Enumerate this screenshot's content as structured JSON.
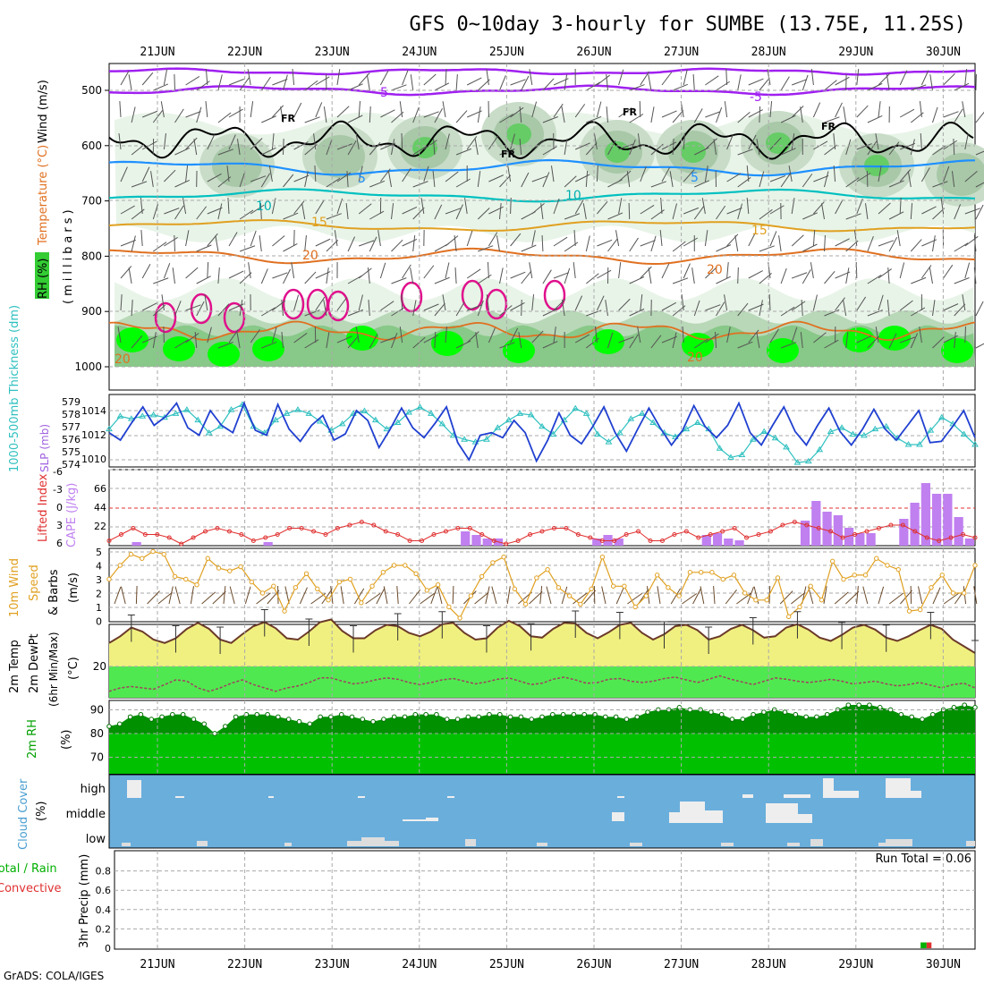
{
  "title": "GFS 0~10day 3-hourly for SUMBE (13.75E, 11.25S)",
  "credit": "GrADS: COLA/IGES",
  "days": [
    "21JUN",
    "22JUN",
    "23JUN",
    "24JUN",
    "25JUN",
    "26JUN",
    "27JUN",
    "28JUN",
    "29JUN",
    "30JUN"
  ],
  "colors": {
    "rh_light": "#e8f4e8",
    "rh_mid": "#b8d8b8",
    "rh_dark": "#88c888",
    "rh_green": "#00ff00",
    "temp_purple": "#a020f0",
    "temp_blue": "#1e90ff",
    "temp_cyan": "#00c0c0",
    "temp_orange": "#e07020",
    "temp_gold": "#e0a020",
    "temp_magenta": "#e0108c",
    "slp": "#2040d0",
    "thickness": "#30c0c0",
    "cape": "#c080f0",
    "li": "#e03030",
    "wind": "#e0a020",
    "temp2m": "#f0f080",
    "dew2m": "#50e850",
    "rh2m": "#00b000",
    "cloud": "#6aaedc",
    "grid": "#aaaaaa"
  },
  "panels": {
    "profile": {
      "ylabel_rh": "RH (%)",
      "ylabel_temp": "Temperature (°C)",
      "ylabel_wind": "Wind (m/s)",
      "ylabel_pres": "(millibars)",
      "yticks": [
        "500",
        "600",
        "700",
        "800",
        "900",
        "1000"
      ],
      "labels": {
        "fr1": "FR",
        "fr2": "FR",
        "fr3": "FR",
        "fr4": "FR",
        "t5a": "-5",
        "t5b": "-5",
        "t5c": "5",
        "t5d": "5",
        "t10a": "10",
        "t10b": "10",
        "t15a": "15",
        "t15b": "15",
        "t20a": "20",
        "t20b": "20",
        "t20c": "20",
        "t20d": "20"
      }
    },
    "slp": {
      "ylabel_left": "1000-500mb Thickness (dm)",
      "ylabel_right": "SLP (mb)",
      "thick_ticks": [
        "579",
        "578",
        "577",
        "576",
        "575",
        "574"
      ],
      "slp_ticks": [
        "1014",
        "1012",
        "1010"
      ]
    },
    "cape": {
      "ylabel_left": "Lifted Index",
      "ylabel_right": "CAPE (J/kg)",
      "li_ticks": [
        "-6",
        "-3",
        "0",
        "3",
        "6"
      ],
      "cape_ticks": [
        "66",
        "44",
        "22"
      ]
    },
    "wind": {
      "ylabel1": "10m Wind",
      "ylabel2": "Speed",
      "ylabel3": "& Barbs",
      "ylabel4": "(m/s)",
      "yticks": [
        "5",
        "4",
        "3",
        "2",
        "1",
        "0"
      ]
    },
    "temp2m": {
      "ylabel1": "2m Temp",
      "ylabel2": "2m DewPt",
      "ylabel3": "(6hr Min/Max)",
      "ylabel4": "(°C)",
      "yticks": [
        "20"
      ]
    },
    "rh2m": {
      "ylabel1": "2m RH",
      "ylabel2": "(%)",
      "yticks": [
        "90",
        "80",
        "70"
      ]
    },
    "cloud": {
      "ylabel1": "Cloud Cover",
      "ylabel2": "(%)",
      "levels": [
        "high",
        "middle",
        "low"
      ]
    },
    "precip": {
      "ylabel1": "Total / Rain",
      "ylabel2": "Convective",
      "ylabel3": "3hr Precip (mm)",
      "yticks": [
        "0.8",
        "0.6",
        "0.4",
        "0.2",
        "0"
      ],
      "run_total": "Run Total = 0.06"
    }
  },
  "chart_data": [
    {
      "type": "line",
      "panel": "slp",
      "series": [
        {
          "name": "SLP (mb)",
          "values": [
            1012.2,
            1011.6,
            1013.0,
            1014.3,
            1012.8,
            1013.5,
            1014.6,
            1012.6,
            1012.0,
            1014.0,
            1012.8,
            1012.2,
            1014.6,
            1012.4,
            1012.0,
            1014.5,
            1012.5,
            1011.5,
            1012.8,
            1013.6,
            1011.6,
            1012.1,
            1014.0,
            1013.2,
            1011.0,
            1012.5,
            1014.2,
            1012.6,
            1011.8,
            1013.0,
            1014.3,
            1011.4,
            1010.0,
            1012.0,
            1012.2,
            1011.8,
            1013.2,
            1012.2,
            1009.9,
            1011.6,
            1013.8,
            1012.0,
            1011.3,
            1012.7,
            1014.3,
            1012.2,
            1010.7,
            1012.5,
            1014.2,
            1012.6,
            1011.2,
            1012.4,
            1014.4,
            1012.7,
            1011.8,
            1012.8,
            1014.6,
            1012.2,
            1011.2,
            1012.8,
            1014.3,
            1012.3,
            1011.2,
            1012.8,
            1014.2,
            1012.3,
            1011.2,
            1012.5,
            1014.1,
            1012.5,
            1011.6,
            1012.8,
            1014.0,
            1011.4,
            1011.5,
            1012.7,
            1014.0,
            1011.8
          ]
        },
        {
          "name": "1000-500mb Thickness (dm)",
          "values": [
            576.8,
            577.8,
            577.6,
            577.8,
            577.9,
            577.7,
            578.0,
            578.3,
            577.5,
            576.5,
            577.0,
            578.3,
            578.7,
            577.0,
            576.5,
            577.5,
            578.0,
            578.3,
            578.0,
            577.4,
            576.7,
            577.2,
            578.0,
            578.2,
            577.5,
            576.8,
            577.3,
            578.1,
            578.5,
            578.0,
            577.2,
            576.3,
            576.0,
            575.8,
            576.0,
            576.9,
            577.5,
            578.0,
            577.9,
            577.0,
            576.4,
            577.5,
            578.4,
            578.0,
            576.4,
            575.8,
            576.5,
            577.6,
            578.0,
            577.3,
            576.5,
            576.2,
            576.8,
            577.3,
            576.8,
            575.3,
            574.6,
            574.8,
            576.0,
            576.6,
            576.1,
            575.4,
            574.2,
            574.3,
            575.2,
            576.6,
            576.9,
            576.4,
            576.3,
            576.8,
            577.0,
            576.1,
            575.6,
            575.6,
            576.7,
            577.7,
            577.2,
            576.4,
            575.6
          ]
        }
      ]
    },
    {
      "type": "bar",
      "panel": "cape",
      "series": [
        {
          "name": "CAPE (J/kg)",
          "values": [
            0,
            0,
            4,
            0,
            0,
            0,
            0,
            0,
            0,
            0,
            0,
            0,
            0,
            0,
            4,
            0,
            0,
            0,
            0,
            0,
            0,
            0,
            0,
            0,
            0,
            0,
            0,
            0,
            0,
            0,
            0,
            0,
            16,
            12,
            8,
            8,
            0,
            0,
            0,
            0,
            0,
            0,
            0,
            0,
            8,
            12,
            8,
            0,
            0,
            0,
            0,
            0,
            0,
            0,
            12,
            14,
            8,
            6,
            0,
            0,
            0,
            0,
            0,
            28,
            50,
            38,
            34,
            20,
            14,
            14,
            0,
            0,
            30,
            48,
            70,
            58,
            58,
            32,
            8
          ]
        },
        {
          "name": "Lifted Index",
          "values": [
            3.5,
            2.5,
            1.5,
            2.5,
            2.5,
            3.0,
            4.0,
            3.0,
            2.0,
            1.5,
            2.0,
            2.5,
            3.5,
            3.0,
            2.5,
            1.5,
            1.5,
            2.0,
            2.5,
            1.5,
            1.0,
            0.5,
            1.0,
            2.0,
            2.5,
            3.5,
            3.5,
            2.5,
            2.0,
            1.5,
            1.5,
            2.5,
            3.5,
            4.0,
            3.5,
            2.5,
            2.0,
            1.5,
            1.5,
            2.5,
            3.0,
            3.5,
            3.5,
            2.5,
            2.0,
            3.5,
            3.5,
            2.5,
            2.0,
            3.0,
            2.5,
            2.0,
            1.5,
            3.0,
            2.5,
            2.0,
            1.0,
            0.5,
            1.0,
            1.5,
            2.0,
            3.0,
            2.5,
            2.0,
            1.5,
            1.0,
            1.0,
            2.0,
            3.0,
            3.5,
            3.0,
            2.5,
            3.0
          ]
        }
      ]
    },
    {
      "type": "line",
      "panel": "wind",
      "series": [
        {
          "name": "10m Wind Speed (m/s)",
          "values": [
            3.0,
            4.0,
            4.8,
            4.5,
            5.0,
            4.8,
            3.2,
            3.0,
            2.6,
            4.5,
            3.8,
            3.6,
            3.9,
            2.8,
            2.0,
            2.5,
            0.7,
            2.4,
            3.4,
            2.3,
            1.5,
            2.8,
            3.0,
            1.3,
            2.5,
            3.5,
            4.0,
            4.0,
            3.4,
            2.2,
            2.6,
            1.0,
            0.2,
            1.8,
            3.2,
            4.2,
            4.6,
            2.3,
            1.2,
            3.1,
            3.7,
            2.4,
            1.8,
            1.2,
            2.3,
            4.6,
            2.5,
            2.5,
            1.0,
            1.8,
            3.3,
            2.4,
            1.8,
            3.5,
            3.5,
            3.5,
            3.0,
            3.3,
            2.0,
            1.5,
            1.5,
            3.1,
            0.3,
            1.0,
            2.5,
            1.5,
            4.3,
            3.0,
            3.3,
            3.3,
            4.5,
            4.0,
            3.7,
            0.7,
            0.8,
            2.4,
            3.3,
            2.0,
            2.0,
            4.0
          ]
        }
      ]
    },
    {
      "type": "area",
      "panel": "temp2m",
      "series": [
        {
          "name": "2m Temp (°C)",
          "values": [
            23.5,
            24.5,
            25.8,
            25.2,
            24.0,
            23.5,
            24.2,
            25.6,
            26.5,
            25.6,
            24.0,
            23.5,
            24.8,
            26.0,
            26.6,
            25.7,
            24.2,
            24.0,
            25.2,
            26.6,
            27.0,
            25.3,
            24.2,
            24.2,
            25.4,
            26.2,
            26.0,
            25.0,
            24.5,
            25.2,
            26.3,
            26.5,
            25.0,
            24.0,
            24.2,
            25.8,
            26.8,
            26.0,
            24.5,
            24.3,
            25.6,
            26.5,
            26.4,
            25.0,
            24.2,
            25.1,
            26.2,
            26.5,
            25.0,
            24.0,
            24.8,
            26.0,
            26.2,
            25.4,
            24.0,
            24.5,
            25.6,
            26.2,
            25.4,
            24.3,
            24.5,
            25.8,
            26.3,
            25.5,
            24.3,
            23.8,
            24.7,
            25.8,
            26.2,
            25.5,
            24.3,
            23.8,
            24.5,
            25.4,
            26.2,
            25.6,
            24.0,
            23.0,
            22.0
          ]
        },
        {
          "name": "2m DewPt (°C)",
          "values": [
            17.5,
            18.0,
            18.2,
            18.0,
            17.8,
            18.5,
            19.2,
            19.0,
            18.0,
            17.5,
            18.0,
            18.7,
            19.2,
            18.5,
            18.0,
            17.5,
            18.0,
            18.3,
            18.8,
            19.5,
            19.5,
            19.0,
            18.6,
            18.8,
            19.2,
            19.5,
            19.3,
            18.8,
            18.5,
            18.8,
            19.2,
            19.4,
            19.0,
            18.6,
            18.9,
            19.3,
            19.5,
            19.0,
            18.5,
            18.7,
            19.3,
            19.6,
            19.2,
            18.7,
            18.8,
            19.3,
            19.4,
            19.0,
            18.8,
            19.0,
            19.4,
            19.6,
            19.2,
            18.8,
            19.3,
            19.8,
            19.3,
            18.9,
            18.5,
            19.0,
            19.5,
            19.3,
            19.0,
            18.8,
            19.0,
            19.3,
            19.0,
            18.6,
            18.8,
            19.0,
            18.6,
            18.3,
            18.5,
            18.8,
            18.4,
            18.0,
            18.5,
            18.7,
            18.0
          ]
        }
      ]
    },
    {
      "type": "area",
      "panel": "rh2m",
      "series": [
        {
          "name": "2m RH (%)",
          "values": [
            83,
            84,
            87,
            88,
            86,
            87,
            88,
            88,
            86,
            84,
            80,
            83,
            87,
            88,
            88,
            88,
            87,
            86,
            85,
            84,
            87,
            87,
            88,
            87,
            86,
            85,
            86,
            87,
            87,
            88,
            88,
            88,
            86,
            86,
            87,
            87,
            88,
            88,
            87,
            87,
            86,
            87,
            88,
            88,
            88,
            88,
            88,
            87,
            87,
            86,
            87,
            89,
            90,
            90,
            91,
            90,
            90,
            89,
            88,
            86,
            86,
            88,
            89,
            90,
            89,
            88,
            87,
            87,
            88,
            90,
            92,
            92,
            92,
            91,
            90,
            88,
            87,
            86,
            88,
            90,
            91,
            92,
            91
          ]
        }
      ]
    },
    {
      "type": "bar",
      "panel": "precip",
      "series": [
        {
          "name": "Total / Rain (mm)",
          "values": [
            0,
            0,
            0,
            0,
            0,
            0,
            0,
            0,
            0,
            0,
            0,
            0,
            0,
            0,
            0,
            0,
            0,
            0,
            0,
            0,
            0,
            0,
            0,
            0,
            0,
            0,
            0,
            0,
            0,
            0,
            0,
            0,
            0,
            0,
            0,
            0,
            0,
            0,
            0,
            0,
            0,
            0,
            0,
            0,
            0,
            0,
            0,
            0,
            0,
            0,
            0,
            0,
            0,
            0,
            0,
            0,
            0,
            0,
            0,
            0,
            0,
            0,
            0,
            0,
            0,
            0,
            0,
            0,
            0,
            0,
            0,
            0,
            0,
            0,
            0.06,
            0,
            0,
            0,
            0
          ]
        }
      ],
      "ylim": [
        0,
        1.0
      ]
    }
  ]
}
